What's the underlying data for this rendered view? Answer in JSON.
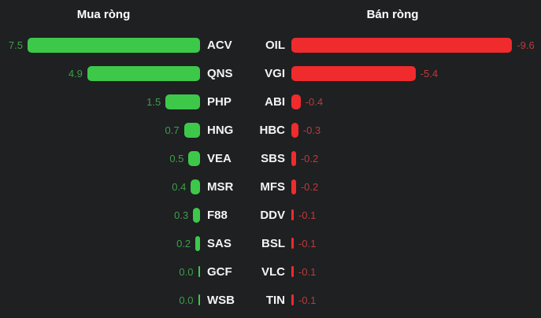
{
  "chart_data": {
    "type": "bar",
    "orientation": "horizontal",
    "grid": false,
    "legend": false,
    "value_axis_range": [
      0,
      10
    ],
    "panels": [
      {
        "title": "Mua ròng",
        "side": "buy",
        "bar_color": "#3ec84a",
        "label_color": "#3f9e49",
        "rows": [
          {
            "ticker": "ACV",
            "value": 7.5,
            "label": "7.5"
          },
          {
            "ticker": "QNS",
            "value": 4.9,
            "label": "4.9"
          },
          {
            "ticker": "PHP",
            "value": 1.5,
            "label": "1.5"
          },
          {
            "ticker": "HNG",
            "value": 0.7,
            "label": "0.7"
          },
          {
            "ticker": "VEA",
            "value": 0.5,
            "label": "0.5"
          },
          {
            "ticker": "MSR",
            "value": 0.4,
            "label": "0.4"
          },
          {
            "ticker": "F88",
            "value": 0.3,
            "label": "0.3"
          },
          {
            "ticker": "SAS",
            "value": 0.2,
            "label": "0.2"
          },
          {
            "ticker": "GCF",
            "value": 0.0,
            "label": "0.0"
          },
          {
            "ticker": "WSB",
            "value": 0.0,
            "label": "0.0"
          }
        ]
      },
      {
        "title": "Bán ròng",
        "side": "sell",
        "bar_color": "#ef2b2d",
        "label_color": "#bf3a3a",
        "rows": [
          {
            "ticker": "OIL",
            "value": -9.6,
            "label": "-9.6"
          },
          {
            "ticker": "VGI",
            "value": -5.4,
            "label": "-5.4"
          },
          {
            "ticker": "ABI",
            "value": -0.4,
            "label": "-0.4"
          },
          {
            "ticker": "HBC",
            "value": -0.3,
            "label": "-0.3"
          },
          {
            "ticker": "SBS",
            "value": -0.2,
            "label": "-0.2"
          },
          {
            "ticker": "MFS",
            "value": -0.2,
            "label": "-0.2"
          },
          {
            "ticker": "DDV",
            "value": -0.1,
            "label": "-0.1"
          },
          {
            "ticker": "BSL",
            "value": -0.1,
            "label": "-0.1"
          },
          {
            "ticker": "VLC",
            "value": -0.1,
            "label": "-0.1"
          },
          {
            "ticker": "TIN",
            "value": -0.1,
            "label": "-0.1"
          }
        ]
      }
    ]
  }
}
